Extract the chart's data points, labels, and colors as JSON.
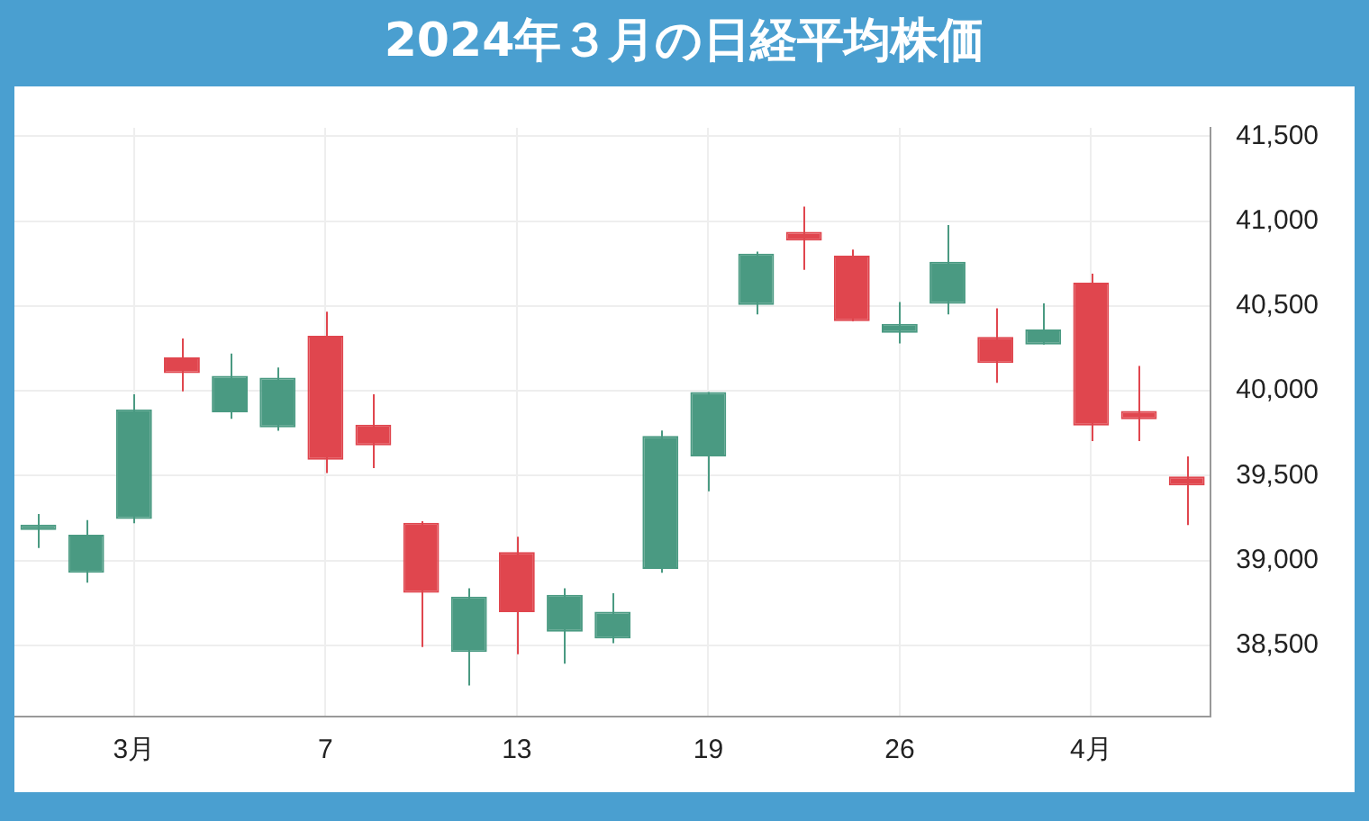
{
  "chart_data": {
    "type": "candlestick",
    "title": "2024年３月の日経平均株価",
    "categories": [
      null,
      null,
      "3月",
      null,
      null,
      null,
      "7",
      null,
      null,
      null,
      "13",
      null,
      null,
      null,
      "19",
      null,
      null,
      null,
      "26",
      null,
      null,
      null,
      "4月",
      null,
      null
    ],
    "ohlc": [
      [
        39180,
        39274,
        39073,
        39192
      ],
      [
        38928,
        39238,
        38869,
        39152
      ],
      [
        39244,
        39980,
        39219,
        39891
      ],
      [
        40197,
        40308,
        39997,
        40104
      ],
      [
        39874,
        40219,
        39835,
        40088
      ],
      [
        39785,
        40137,
        39764,
        40078
      ],
      [
        40325,
        40466,
        39515,
        39594
      ],
      [
        39801,
        39980,
        39545,
        39679
      ],
      [
        39222,
        39232,
        38490,
        38810
      ],
      [
        38461,
        38836,
        38263,
        38787
      ],
      [
        39050,
        39140,
        38448,
        38695
      ],
      [
        38580,
        38836,
        38392,
        38797
      ],
      [
        38540,
        38807,
        38513,
        38698
      ],
      [
        38950,
        39766,
        38928,
        39734
      ],
      [
        39613,
        39993,
        39408,
        39993
      ],
      [
        40506,
        40820,
        40450,
        40809
      ],
      [
        40937,
        41086,
        40713,
        40885
      ],
      [
        40796,
        40832,
        40410,
        40410
      ],
      [
        40341,
        40523,
        40279,
        40394
      ],
      [
        40513,
        40977,
        40450,
        40761
      ],
      [
        40318,
        40486,
        40047,
        40164
      ],
      [
        40272,
        40516,
        40272,
        40361
      ],
      [
        40638,
        40691,
        39704,
        39795
      ],
      [
        39881,
        40146,
        39704,
        39832
      ],
      [
        39495,
        39613,
        39209,
        39442
      ]
    ],
    "colors": [
      "#4a9a82",
      "#4a9a82",
      "#4a9a82",
      "#e0464e",
      "#4a9a82",
      "#4a9a82",
      "#e0464e",
      "#e0464e",
      "#e0464e",
      "#4a9a82",
      "#e0464e",
      "#4a9a82",
      "#4a9a82",
      "#4a9a82",
      "#4a9a82",
      "#4a9a82",
      "#e0464e",
      "#e0464e",
      "#4a9a82",
      "#4a9a82",
      "#e0464e",
      "#4a9a82",
      "#e0464e",
      "#e0464e",
      "#e0464e"
    ],
    "ylim": [
      38080,
      41550
    ],
    "yticks": [
      {
        "value": 38500,
        "label": "38,500"
      },
      {
        "value": 39000,
        "label": "39,000"
      },
      {
        "value": 39500,
        "label": "39,500"
      },
      {
        "value": 40000,
        "label": "40,000"
      },
      {
        "value": 40500,
        "label": "40,500"
      },
      {
        "value": 41000,
        "label": "41,000"
      },
      {
        "value": 41500,
        "label": "41,500"
      }
    ],
    "grid": true,
    "legend": false
  }
}
